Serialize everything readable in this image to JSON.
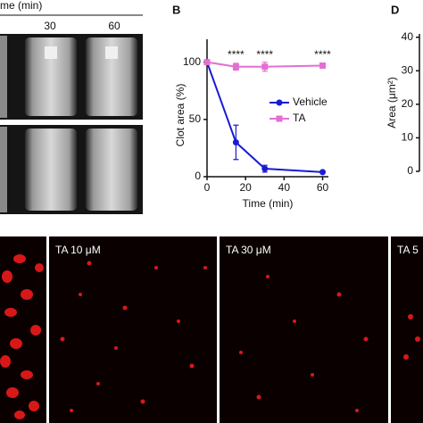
{
  "figure": {
    "time_header": "me (min)",
    "time_30": "30",
    "time_60": "60",
    "panel_b": "B",
    "panel_d": "D",
    "micro_labels": [
      "TA 10 μM",
      "TA 30 μM",
      "TA 5"
    ]
  },
  "chart_data": [
    {
      "type": "line",
      "x_label": "Time (min)",
      "y_label": "Clot area (%)",
      "x": [
        0,
        15,
        30,
        60
      ],
      "series": [
        {
          "name": "Vehicle",
          "color": "#1a1ad6",
          "marker": "circle",
          "values": [
            100,
            30,
            7,
            4
          ],
          "errors": [
            0,
            15,
            3,
            0
          ]
        },
        {
          "name": "TA",
          "color": "#e46fd3",
          "marker": "square",
          "values": [
            100,
            96,
            96,
            97
          ],
          "errors": [
            0,
            3,
            4,
            2
          ]
        }
      ],
      "annotations": [
        {
          "text": "****",
          "x": 15
        },
        {
          "text": "****",
          "x": 30
        },
        {
          "text": "****",
          "x": 60
        }
      ],
      "xlim": [
        0,
        63
      ],
      "xticks": [
        0,
        20,
        40,
        60
      ],
      "ylim": [
        0,
        120
      ],
      "yticks": [
        0,
        50,
        100
      ]
    },
    {
      "type": "bar",
      "y_label": "Area (μm²)",
      "ylim": [
        0,
        41
      ],
      "yticks": [
        0,
        10,
        20,
        30,
        40
      ]
    }
  ]
}
